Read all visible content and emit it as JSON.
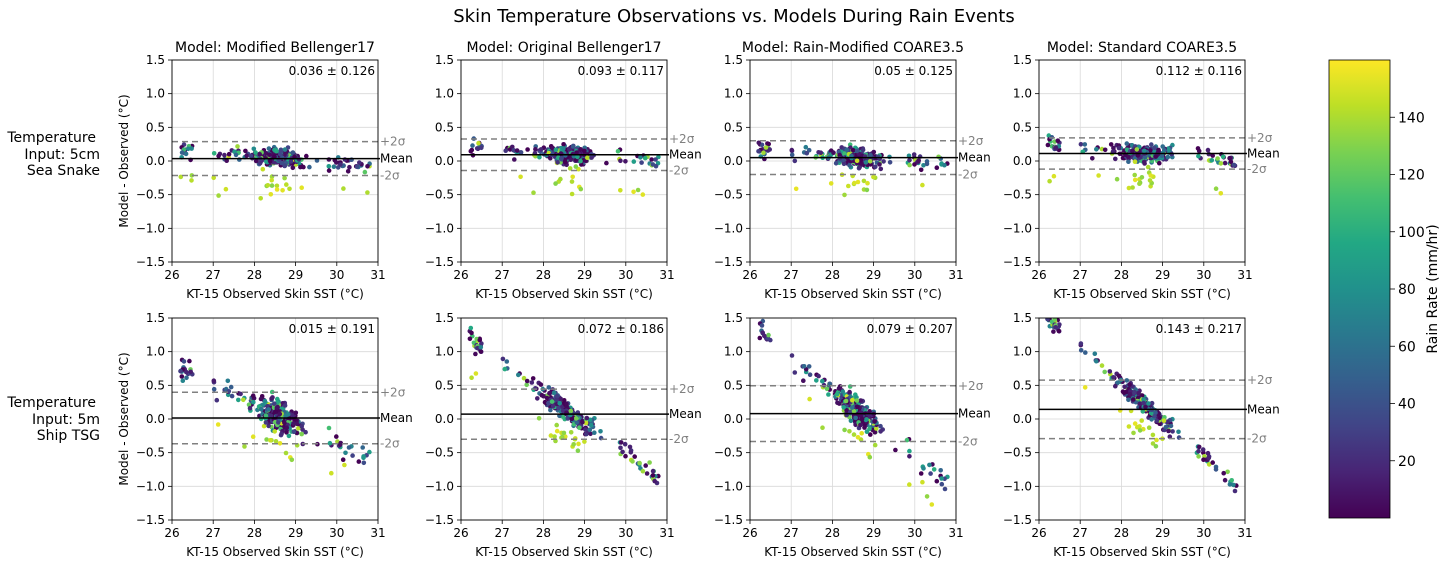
{
  "figure": {
    "title": "Skin Temperature Observations vs. Models During Rain Events",
    "colorbar": {
      "label": "Rain Rate (mm/hr)",
      "colormap": "viridis",
      "range": [
        0,
        160
      ],
      "ticks": [
        "20",
        "40",
        "60",
        "80",
        "100",
        "120",
        "140"
      ]
    },
    "row_labels": [
      [
        "Temperature",
        "Input: 5cm",
        "Sea Snake"
      ],
      [
        "Temperature",
        "Input: 5m",
        "Ship TSG"
      ]
    ],
    "common": {
      "xlabel": "KT-15 Observed Skin SST ($^\\circ$C)",
      "xlabel_display": "KT-15 Observed Skin SST (°C)",
      "ylabel_display": "Model - Observed (°C)",
      "xlim": [
        26,
        31
      ],
      "ylim": [
        -1.5,
        1.5
      ],
      "xticks": [
        "26",
        "27",
        "28",
        "29",
        "30",
        "31"
      ],
      "yticks": [
        "1.5",
        "1.0",
        "0.5",
        "0.0",
        "−0.5",
        "−1.0",
        "−1.5"
      ],
      "plus_label": "+2σ",
      "minus_label": "-2σ",
      "mean_label": "Mean",
      "grid": true
    }
  },
  "chart_data": [
    {
      "type": "scatter",
      "row": 0,
      "col": 0,
      "title": "Model: Modified Bellenger17",
      "stat_label": "0.036 ± 0.126",
      "mean": 0.036,
      "plus2sigma": 0.288,
      "minus2sigma": -0.216,
      "slope": -0.05,
      "spread": 0.1
    },
    {
      "type": "scatter",
      "row": 0,
      "col": 1,
      "title": "Model: Original Bellenger17",
      "stat_label": "0.093 ± 0.117",
      "mean": 0.093,
      "plus2sigma": 0.327,
      "minus2sigma": -0.141,
      "slope": -0.05,
      "spread": 0.1
    },
    {
      "type": "scatter",
      "row": 0,
      "col": 2,
      "title": "Model: Rain-Modified COARE3.5",
      "stat_label": "0.05 ± 0.125",
      "mean": 0.05,
      "plus2sigma": 0.3,
      "minus2sigma": -0.2,
      "slope": -0.05,
      "spread": 0.1
    },
    {
      "type": "scatter",
      "row": 0,
      "col": 3,
      "title": "Model: Standard COARE3.5",
      "stat_label": "0.112 ± 0.116",
      "mean": 0.112,
      "plus2sigma": 0.344,
      "minus2sigma": -0.12,
      "slope": -0.05,
      "spread": 0.1
    },
    {
      "type": "scatter",
      "row": 1,
      "col": 0,
      "title": "",
      "stat_label": "0.015 ± 0.191",
      "mean": 0.015,
      "plus2sigma": 0.397,
      "minus2sigma": -0.367,
      "slope": -0.3,
      "spread": 0.17
    },
    {
      "type": "scatter",
      "row": 1,
      "col": 1,
      "title": "",
      "stat_label": "0.072 ± 0.186",
      "mean": 0.072,
      "plus2sigma": 0.444,
      "minus2sigma": -0.3,
      "slope": -0.45,
      "spread": 0.12
    },
    {
      "type": "scatter",
      "row": 1,
      "col": 2,
      "title": "",
      "stat_label": "0.079 ± 0.207",
      "mean": 0.079,
      "plus2sigma": 0.493,
      "minus2sigma": -0.335,
      "slope": -0.5,
      "spread": 0.15
    },
    {
      "type": "scatter",
      "row": 1,
      "col": 3,
      "title": "",
      "stat_label": "0.143 ± 0.217",
      "mean": 0.143,
      "plus2sigma": 0.577,
      "minus2sigma": -0.291,
      "slope": -0.55,
      "spread": 0.1
    }
  ]
}
